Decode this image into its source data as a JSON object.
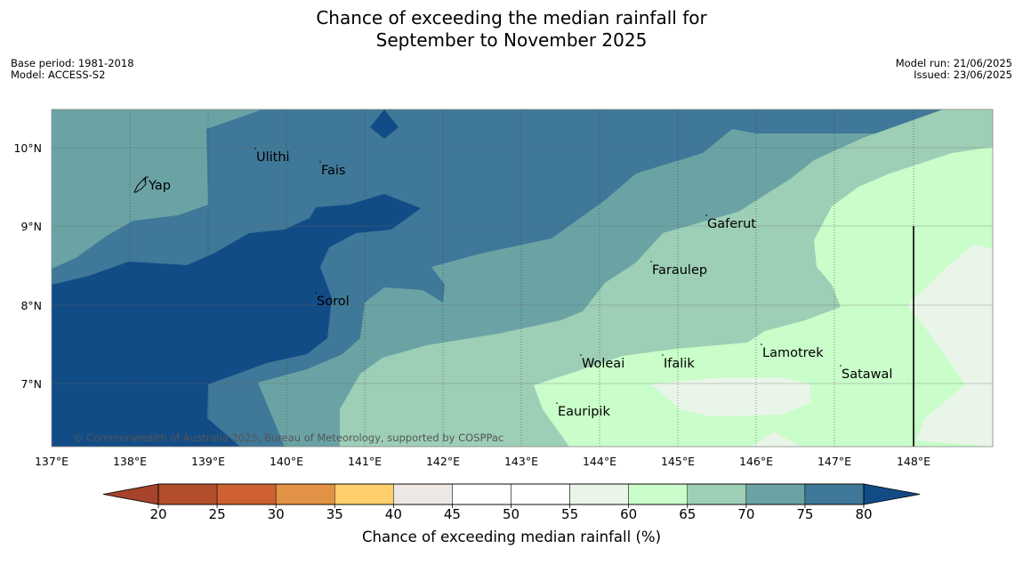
{
  "title_line1": "Chance of exceeding the median rainfall for",
  "title_line2": "September to November 2025",
  "meta": {
    "base_period": "Base period: 1981-2018",
    "model": "Model: ACCESS-S2",
    "model_run": "Model run: 21/06/2025",
    "issued": "Issued: 23/06/2025"
  },
  "map": {
    "lon_labels": [
      "137°E",
      "138°E",
      "139°E",
      "140°E",
      "141°E",
      "142°E",
      "143°E",
      "144°E",
      "145°E",
      "146°E",
      "147°E",
      "148°E"
    ],
    "lat_labels": [
      "10°N",
      "9°N",
      "8°N",
      "7°N"
    ],
    "places": [
      "Ulithi",
      "Fais",
      "Yap",
      "Gaferut",
      "Faraulep",
      "Sorol",
      "Lamotrek",
      "Woleai",
      "Ifalik",
      "Satawal",
      "Eauripik"
    ],
    "copyright": "© Commonwealth of Australia 2025, Bureau of Meteorology, supported by COSPPac"
  },
  "colorbar": {
    "ticks": [
      "20",
      "25",
      "30",
      "35",
      "40",
      "45",
      "50",
      "55",
      "60",
      "65",
      "70",
      "75",
      "80"
    ],
    "colors": [
      "#a6432a",
      "#b24f2a",
      "#cf6130",
      "#e29244",
      "#fecf6a",
      "#ede8e4",
      "#ffffff",
      "#ffffff",
      "#eaf5ea",
      "#c9fdc9",
      "#9dcfb6",
      "#6ba3a5",
      "#3f7898",
      "#124c86"
    ],
    "label": "Chance of exceeding median rainfall (%)"
  }
}
